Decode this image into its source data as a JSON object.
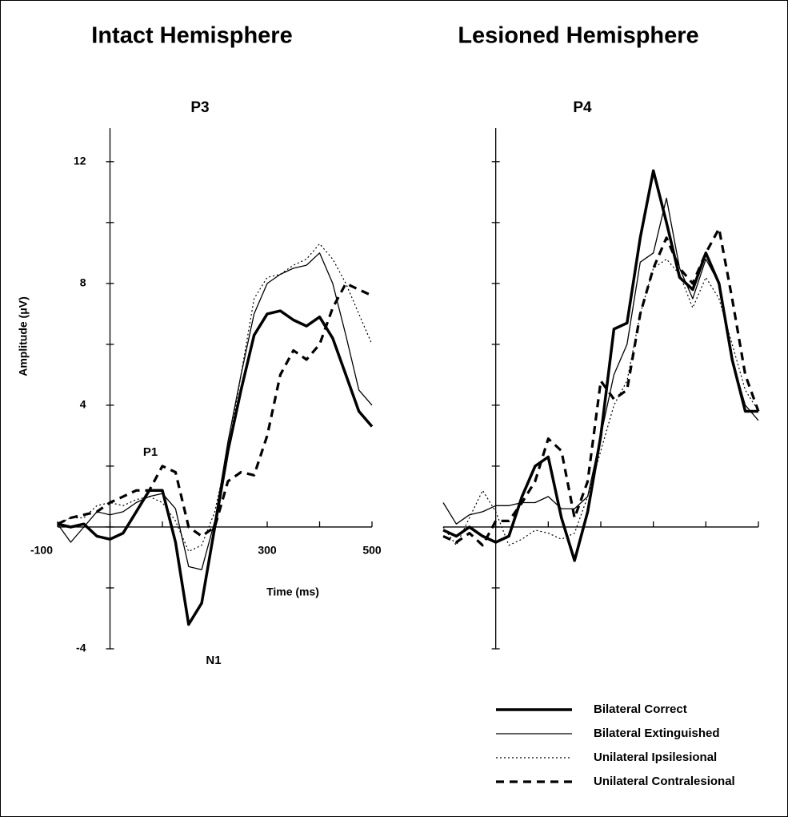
{
  "chart_data": [
    {
      "type": "line",
      "heading": "Intact Hemisphere",
      "title": "P3",
      "xlabel": "Time (ms)",
      "ylabel": "Amplitude (μV)",
      "annotations": [
        "P1",
        "N1"
      ],
      "xlim": [
        -100,
        500
      ],
      "ylim": [
        -4,
        13.1
      ],
      "xticks": [
        -100,
        300,
        500
      ],
      "xminor": [
        0,
        100,
        200,
        400
      ],
      "yticks": [
        -4,
        4,
        8,
        12
      ],
      "yminor": [
        -2,
        0,
        2,
        6,
        10
      ],
      "x": [
        -100,
        -75,
        -50,
        -25,
        0,
        25,
        50,
        75,
        100,
        125,
        150,
        175,
        200,
        225,
        250,
        275,
        300,
        325,
        350,
        375,
        400,
        425,
        450,
        475,
        500
      ],
      "series": [
        {
          "name": "Bilateral Correct",
          "color": "#000000",
          "dash": "solid",
          "width": 3.5,
          "values": [
            0.1,
            0,
            0.1,
            -0.3,
            -0.4,
            -0.2,
            0.5,
            1.2,
            1.2,
            -0.5,
            -3.2,
            -2.5,
            0,
            2.5,
            4.5,
            6.3,
            7.0,
            7.1,
            6.8,
            6.6,
            6.9,
            6.2,
            5.0,
            3.8,
            3.3
          ]
        },
        {
          "name": "Bilateral Extinguished",
          "color": "#000000",
          "dash": "solid",
          "width": 1.3,
          "values": [
            0.1,
            -0.5,
            0,
            0.5,
            0.4,
            0.5,
            0.8,
            1.0,
            1.1,
            0.6,
            -1.3,
            -1.4,
            0.2,
            2.8,
            5.0,
            7.0,
            8.0,
            8.3,
            8.5,
            8.6,
            9.0,
            8.0,
            6.3,
            4.5,
            4.0
          ]
        },
        {
          "name": "Unilateral Ipsilesional",
          "color": "#000000",
          "dash": "dotted",
          "width": 1.2,
          "values": [
            0.1,
            0.3,
            0.3,
            0.7,
            0.8,
            0.7,
            0.9,
            1.0,
            0.8,
            0.2,
            -0.8,
            -0.6,
            0.5,
            2.5,
            5.0,
            7.5,
            8.2,
            8.3,
            8.6,
            8.8,
            9.3,
            8.8,
            8.0,
            7.0,
            6.0
          ]
        },
        {
          "name": "Unilateral Contralesional",
          "color": "#000000",
          "dash": "dashed",
          "width": 3.2,
          "values": [
            0.1,
            0.3,
            0.4,
            0.5,
            0.8,
            1.0,
            1.2,
            1.2,
            2.0,
            1.8,
            0,
            -0.3,
            0,
            1.5,
            1.8,
            1.7,
            3.0,
            5.0,
            5.8,
            5.5,
            6.0,
            7.2,
            8.0,
            7.8,
            7.6
          ]
        }
      ]
    },
    {
      "type": "line",
      "heading": "Lesioned Hemisphere",
      "title": "P4",
      "xlim": [
        -100,
        500
      ],
      "ylim": [
        -4,
        13.1
      ],
      "xminor": [
        0,
        100,
        200,
        300,
        400,
        500
      ],
      "yminor": [
        -4,
        -2,
        0,
        2,
        4,
        6,
        8,
        10,
        12
      ],
      "legend": "lower right",
      "x": [
        -100,
        -75,
        -50,
        -25,
        0,
        25,
        50,
        75,
        100,
        125,
        150,
        175,
        200,
        225,
        250,
        275,
        300,
        325,
        350,
        375,
        400,
        425,
        450,
        475,
        500
      ],
      "series": [
        {
          "name": "Bilateral Correct",
          "color": "#000000",
          "dash": "solid",
          "width": 3.5,
          "values": [
            -0.1,
            -0.3,
            0,
            -0.3,
            -0.5,
            -0.3,
            1.0,
            2.0,
            2.3,
            0.3,
            -1.1,
            0.5,
            3.0,
            6.5,
            6.7,
            9.5,
            11.7,
            10.0,
            8.2,
            7.8,
            9.0,
            8.0,
            5.5,
            3.8,
            3.8
          ]
        },
        {
          "name": "Bilateral Extinguished",
          "color": "#000000",
          "dash": "solid",
          "width": 1.3,
          "values": [
            0.8,
            0.1,
            0.4,
            0.5,
            0.7,
            0.7,
            0.8,
            0.8,
            1.0,
            0.6,
            0.6,
            1.0,
            3.0,
            5.0,
            6.0,
            8.7,
            9.0,
            10.8,
            8.5,
            7.5,
            8.8,
            8.0,
            5.5,
            4.0,
            3.5
          ]
        },
        {
          "name": "Unilateral Ipsilesional",
          "color": "#000000",
          "dash": "dotted",
          "width": 1.2,
          "values": [
            0,
            -0.6,
            0.3,
            1.2,
            0.5,
            -0.6,
            -0.4,
            -0.1,
            -0.2,
            -0.4,
            -0.2,
            1.0,
            2.5,
            4.0,
            4.8,
            7.0,
            8.5,
            8.8,
            8.3,
            7.2,
            8.2,
            7.5,
            6.0,
            4.5,
            3.8
          ]
        },
        {
          "name": "Unilateral Contralesional",
          "color": "#000000",
          "dash": "dashed",
          "width": 3.2,
          "values": [
            -0.3,
            -0.5,
            -0.2,
            -0.6,
            0.2,
            0.2,
            0.8,
            1.5,
            2.9,
            2.5,
            0.3,
            1.5,
            4.8,
            4.2,
            4.5,
            7.0,
            8.5,
            9.5,
            8.5,
            8.0,
            9.0,
            9.8,
            7.5,
            5.0,
            3.8
          ]
        }
      ]
    }
  ]
}
